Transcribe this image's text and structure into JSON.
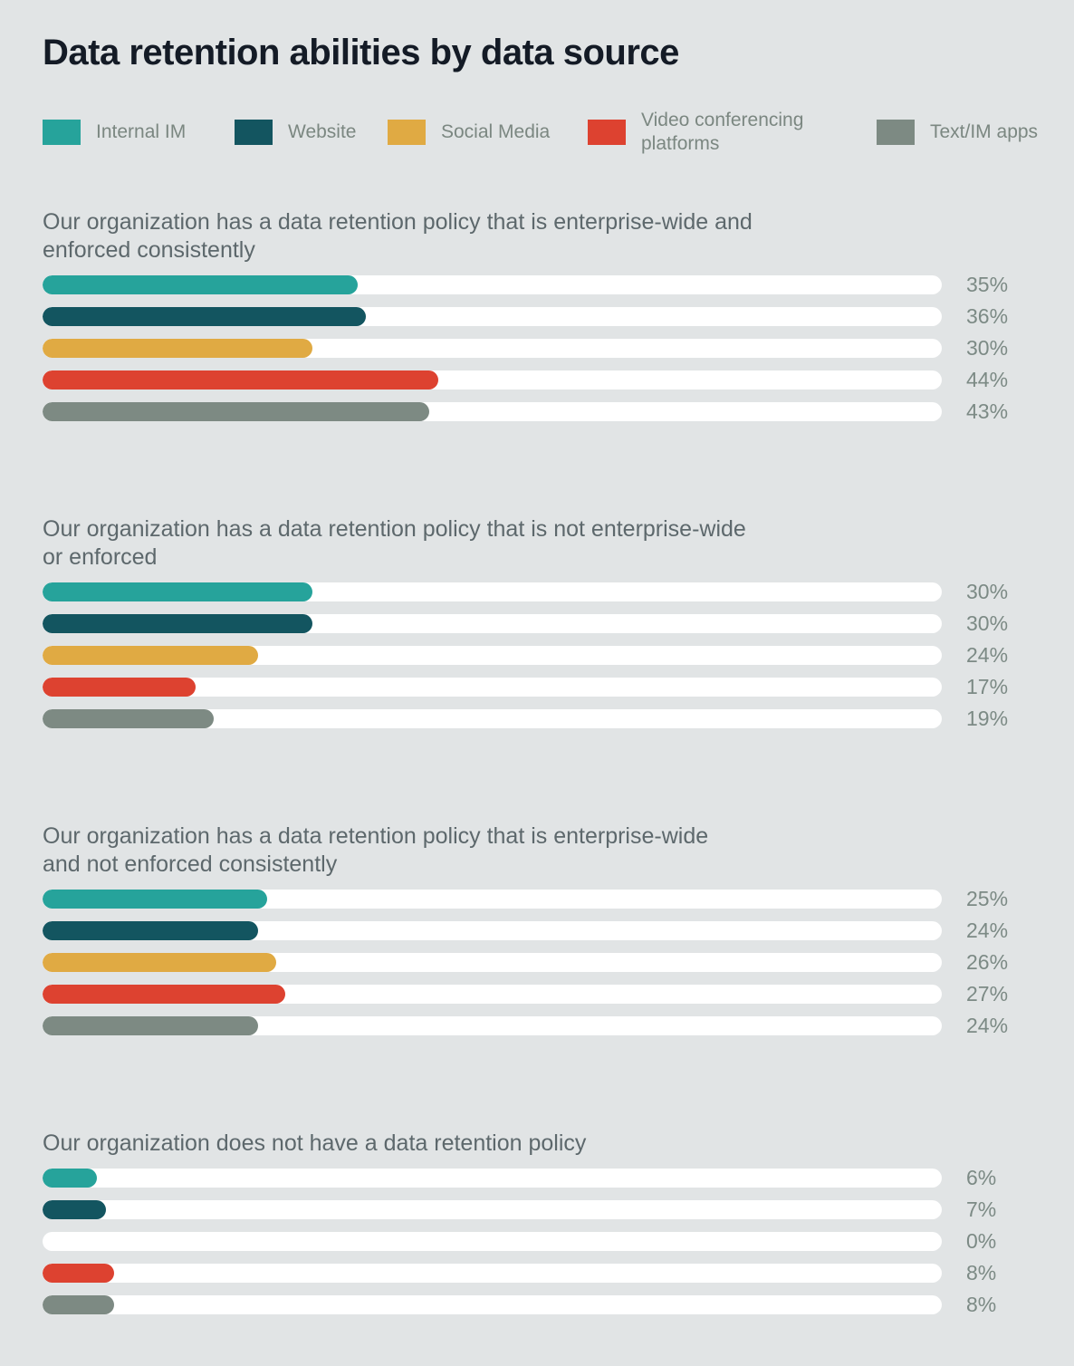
{
  "title": "Data retention abilities by data source",
  "colors": {
    "background": "#e1e4e5",
    "track": "#ffffff",
    "title_text": "#141b26",
    "heading_text": "#5d686c",
    "value_text": "#7c8a85",
    "legend_text": "#7b8781"
  },
  "legend": {
    "items": [
      {
        "label": "Internal IM",
        "color": "#26a39b"
      },
      {
        "label": "Website",
        "color": "#135560"
      },
      {
        "label": "Social Media",
        "color": "#e0aa43"
      },
      {
        "label": "Video conferencing platforms",
        "color": "#dd4230"
      },
      {
        "label": "Text/IM apps",
        "color": "#7d8a83"
      }
    ]
  },
  "chart_data": {
    "type": "bar",
    "orientation": "horizontal",
    "title": "Data retention abilities by data source",
    "xlim": [
      0,
      100
    ],
    "grid": false,
    "legend_position": "top",
    "series_names": [
      "Internal IM",
      "Website",
      "Social Media",
      "Video conferencing platforms",
      "Text/IM apps"
    ],
    "series_colors": [
      "#26a39b",
      "#135560",
      "#e0aa43",
      "#dd4230",
      "#7d8a83"
    ],
    "groups": [
      {
        "heading": "Our organization has a data retention policy that is enterprise-wide and enforced consistently",
        "heading_lines": [
          "Our organization has a data retention policy that is enterprise-wide and",
          "enforced consistently"
        ],
        "values": [
          35,
          36,
          30,
          44,
          43
        ],
        "value_labels": [
          "35%",
          "36%",
          "30%",
          "44%",
          "43%"
        ]
      },
      {
        "heading": "Our organization has a data retention policy that is not enterprise-wide or enforced",
        "heading_lines": [
          "Our organization has a data retention policy that is not enterprise-wide",
          "or enforced"
        ],
        "values": [
          30,
          30,
          24,
          17,
          19
        ],
        "value_labels": [
          "30%",
          "30%",
          "24%",
          "17%",
          "19%"
        ]
      },
      {
        "heading": "Our organization has a data retention policy that is enterprise-wide and not enforced consistently",
        "heading_lines": [
          "Our organization has a data retention policy that is enterprise-wide",
          "and not enforced consistently"
        ],
        "values": [
          25,
          24,
          26,
          27,
          24
        ],
        "value_labels": [
          "25%",
          "24%",
          "26%",
          "27%",
          "24%"
        ]
      },
      {
        "heading": "Our organization does not have a data retention policy",
        "heading_lines": [
          "Our organization does not have a data retention policy"
        ],
        "values": [
          6,
          7,
          0,
          8,
          8
        ],
        "value_labels": [
          "6%",
          "7%",
          "0%",
          "8%",
          "8%"
        ]
      }
    ]
  }
}
